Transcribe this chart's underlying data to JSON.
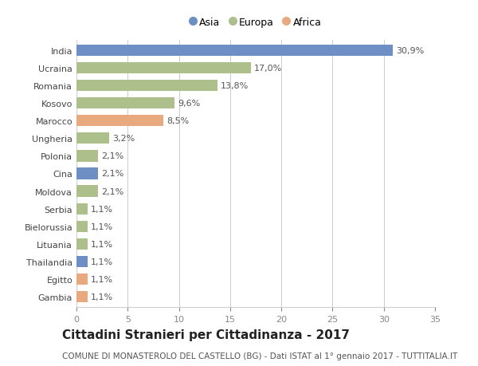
{
  "countries": [
    "India",
    "Ucraina",
    "Romania",
    "Kosovo",
    "Marocco",
    "Ungheria",
    "Polonia",
    "Cina",
    "Moldova",
    "Serbia",
    "Bielorussia",
    "Lituania",
    "Thailandia",
    "Egitto",
    "Gambia"
  ],
  "values": [
    30.9,
    17.0,
    13.8,
    9.6,
    8.5,
    3.2,
    2.1,
    2.1,
    2.1,
    1.1,
    1.1,
    1.1,
    1.1,
    1.1,
    1.1
  ],
  "labels": [
    "30,9%",
    "17,0%",
    "13,8%",
    "9,6%",
    "8,5%",
    "3,2%",
    "2,1%",
    "2,1%",
    "2,1%",
    "1,1%",
    "1,1%",
    "1,1%",
    "1,1%",
    "1,1%",
    "1,1%"
  ],
  "colors": [
    "#6e8fc4",
    "#adbf8a",
    "#adbf8a",
    "#adbf8a",
    "#e8a97e",
    "#adbf8a",
    "#adbf8a",
    "#6e8fc4",
    "#adbf8a",
    "#adbf8a",
    "#adbf8a",
    "#adbf8a",
    "#6e8fc4",
    "#e8a97e",
    "#e8a97e"
  ],
  "legend": [
    {
      "label": "Asia",
      "color": "#6e8fc4"
    },
    {
      "label": "Europa",
      "color": "#adbf8a"
    },
    {
      "label": "Africa",
      "color": "#e8a97e"
    }
  ],
  "xlim": [
    0,
    35
  ],
  "xticks": [
    0,
    5,
    10,
    15,
    20,
    25,
    30,
    35
  ],
  "title": "Cittadini Stranieri per Cittadinanza - 2017",
  "subtitle": "COMUNE DI MONASTEROLO DEL CASTELLO (BG) - Dati ISTAT al 1° gennaio 2017 - TUTTITALIA.IT",
  "bg_color": "#ffffff",
  "grid_color": "#cccccc",
  "bar_height": 0.65,
  "label_fontsize": 8,
  "tick_fontsize": 8,
  "title_fontsize": 11,
  "subtitle_fontsize": 7.5
}
